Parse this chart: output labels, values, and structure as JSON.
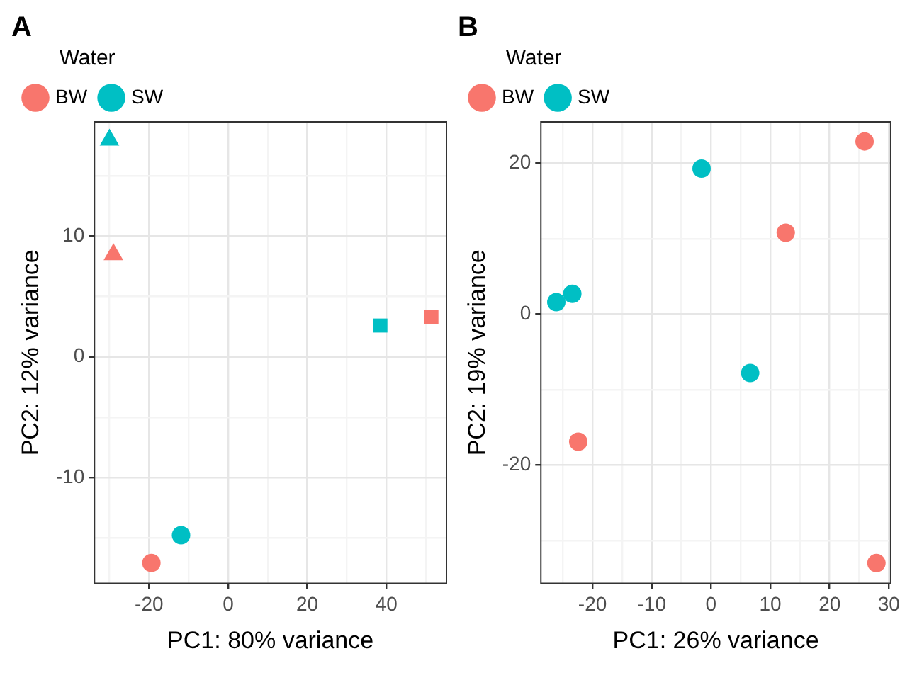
{
  "chart_data": [
    {
      "type": "scatter",
      "title": "A",
      "xlabel": "PC1: 80% variance",
      "ylabel": "PC2: 12% variance",
      "legend_title": "Water",
      "legend": "top",
      "grid": true,
      "marker": "circle",
      "xlim": [
        -33.8,
        55.2
      ],
      "ylim": [
        -18.8,
        19.5
      ],
      "xticks": [
        {
          "value": -30,
          "label": null
        },
        -20,
        {
          "value": -10,
          "label": null
        },
        0,
        {
          "value": 10,
          "label": null
        },
        20,
        {
          "value": 30,
          "label": null
        },
        40,
        {
          "value": 50,
          "label": null
        }
      ],
      "yticks": [
        {
          "value": -15,
          "label": null
        },
        -10,
        {
          "value": -5,
          "label": null
        },
        0,
        {
          "value": 5,
          "label": null
        },
        10,
        {
          "value": 15,
          "label": null
        }
      ],
      "series": [
        {
          "name": "BW",
          "color": "#f8766d",
          "x": [
            -19.4
          ],
          "values": [
            -17.1
          ]
        },
        {
          "name": "SW",
          "color": "#00bfc4",
          "x": [
            -11.9
          ],
          "values": [
            -14.8
          ]
        },
        {
          "color": "#f8766d",
          "marker": "triangle",
          "x": [
            -29
          ],
          "values": [
            8.5
          ]
        },
        {
          "color": "#00bfc4",
          "marker": "triangle",
          "x": [
            -30
          ],
          "values": [
            18
          ]
        },
        {
          "color": "#f8766d",
          "marker": "square",
          "x": [
            51.4
          ],
          "values": [
            3.3
          ]
        },
        {
          "color": "#00bfc4",
          "marker": "square",
          "x": [
            38.5
          ],
          "values": [
            2.6
          ]
        }
      ]
    },
    {
      "type": "scatter",
      "title": "B",
      "xlabel": "PC1: 26% variance",
      "ylabel": "PC2: 19% variance",
      "legend_title": "Water",
      "legend": "top",
      "grid": true,
      "marker": "circle",
      "xlim": [
        -28.7,
        30.3
      ],
      "ylim": [
        -35.7,
        25.5
      ],
      "xticks": [
        {
          "value": -25,
          "label": null
        },
        -20,
        {
          "value": -15,
          "label": null
        },
        -10,
        {
          "value": -5,
          "label": null
        },
        0,
        {
          "value": 5,
          "label": null
        },
        10,
        {
          "value": 15,
          "label": null
        },
        20,
        {
          "value": 25,
          "label": null
        },
        30
      ],
      "yticks": [
        {
          "value": -30,
          "label": null
        },
        -20,
        {
          "value": -10,
          "label": null
        },
        0,
        {
          "value": 10,
          "label": null
        },
        20
      ],
      "series": [
        {
          "name": "BW",
          "color": "#f8766d",
          "x": [
            25.9,
            12.6,
            -22.4,
            27.9
          ],
          "values": [
            22.9,
            10.8,
            -16.9,
            -33
          ]
        },
        {
          "name": "SW",
          "color": "#00bfc4",
          "x": [
            -26.1,
            -23.4,
            -1.6,
            6.6
          ],
          "values": [
            1.6,
            2.7,
            19.3,
            -7.8
          ]
        }
      ]
    }
  ]
}
